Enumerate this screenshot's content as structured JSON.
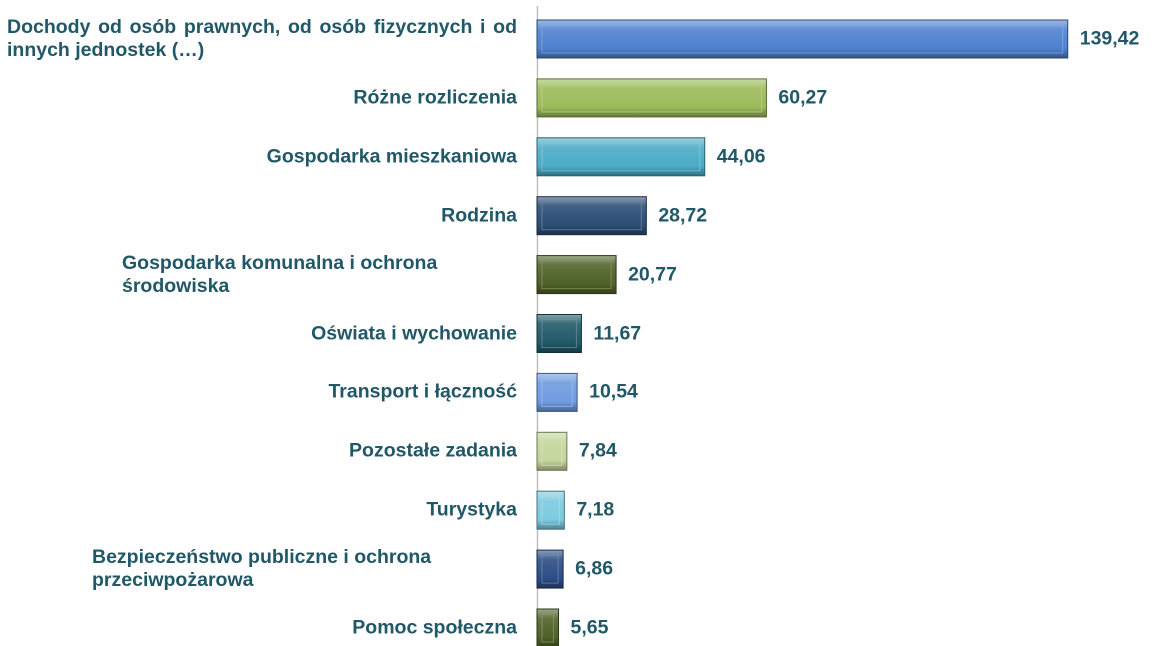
{
  "chart_data": {
    "type": "bar",
    "orientation": "horizontal",
    "categories": [
      "Dochody od osób prawnych, od osób fizycznych i od innych jednostek (…)",
      "Różne rozliczenia",
      "Gospodarka mieszkaniowa",
      "Rodzina",
      "Gospodarka komunalna i ochrona środowiska",
      "Oświata i wychowanie",
      "Transport i łączność",
      "Pozostałe zadania",
      "Turystyka",
      "Bezpieczeństwo publiczne i ochrona przeciwpożarowa",
      "Pomoc społeczna"
    ],
    "values": [
      139.42,
      60.27,
      44.06,
      28.72,
      20.77,
      11.67,
      10.54,
      7.84,
      7.18,
      6.86,
      5.65
    ],
    "value_labels": [
      "139,42",
      "60,27",
      "44,06",
      "28,72",
      "20,77",
      "11,67",
      "10,54",
      "7,84",
      "7,18",
      "6,86",
      "5,65"
    ],
    "colors": [
      "#4f81d0",
      "#9bbb59",
      "#4bacc6",
      "#2c4d75",
      "#4f6228",
      "#215968",
      "#6f9be0",
      "#c3d69b",
      "#7ccadf",
      "#2c4d85",
      "#4f6228"
    ],
    "xlim": [
      0,
      150
    ]
  }
}
